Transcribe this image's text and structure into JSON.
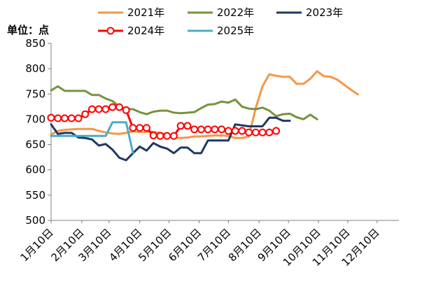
{
  "chart_data": {
    "type": "line",
    "ylabel": "单位：点",
    "ylim": [
      500,
      850
    ],
    "yticks": [
      500,
      550,
      600,
      650,
      700,
      750,
      800,
      850
    ],
    "xlim": [
      1,
      52
    ],
    "xticks": [
      {
        "label": "1月10日",
        "x": 1
      },
      {
        "label": "2月10日",
        "x": 5.5
      },
      {
        "label": "3月10日",
        "x": 9.5
      },
      {
        "label": "4月10日",
        "x": 14
      },
      {
        "label": "5月10日",
        "x": 18.3
      },
      {
        "label": "6月10日",
        "x": 22.7
      },
      {
        "label": "7月10日",
        "x": 27
      },
      {
        "label": "8月10日",
        "x": 31.5
      },
      {
        "label": "9月10日",
        "x": 35.8
      },
      {
        "label": "10月10日",
        "x": 40.2
      },
      {
        "label": "11月10日",
        "x": 44.5
      },
      {
        "label": "12月10日",
        "x": 48.8
      }
    ],
    "legend_position": "top",
    "series": [
      {
        "name": "2021年",
        "color": "#F79646",
        "marker": "none",
        "points": [
          [
            1,
            670
          ],
          [
            2,
            677
          ],
          [
            3,
            679
          ],
          [
            4,
            680
          ],
          [
            5,
            681
          ],
          [
            6,
            681
          ],
          [
            7,
            681
          ],
          [
            8,
            677
          ],
          [
            9,
            674
          ],
          [
            10,
            672
          ],
          [
            11,
            671
          ],
          [
            12,
            673
          ],
          [
            13,
            676
          ],
          [
            14,
            675
          ],
          [
            15,
            675
          ],
          [
            16,
            675
          ],
          [
            17,
            673
          ],
          [
            18,
            670
          ],
          [
            19,
            664
          ],
          [
            20,
            663
          ],
          [
            21,
            664
          ],
          [
            22,
            666
          ],
          [
            23,
            666
          ],
          [
            24,
            667
          ],
          [
            25,
            668
          ],
          [
            26,
            668
          ],
          [
            27,
            667
          ],
          [
            28,
            663
          ],
          [
            29,
            663
          ],
          [
            30,
            666
          ],
          [
            31,
            722
          ],
          [
            32,
            765
          ],
          [
            33,
            789
          ],
          [
            34,
            786
          ],
          [
            35,
            784
          ],
          [
            36,
            784
          ],
          [
            37,
            770
          ],
          [
            38,
            770
          ],
          [
            39,
            780
          ],
          [
            40,
            795
          ],
          [
            41,
            785
          ],
          [
            42,
            784
          ],
          [
            43,
            778
          ],
          [
            44,
            768
          ],
          [
            45,
            758
          ],
          [
            46,
            749
          ]
        ]
      },
      {
        "name": "2022年",
        "color": "#77933C",
        "marker": "none",
        "points": [
          [
            1,
            757
          ],
          [
            2,
            765
          ],
          [
            3,
            756
          ],
          [
            4,
            756
          ],
          [
            5,
            756
          ],
          [
            6,
            756
          ],
          [
            7,
            748
          ],
          [
            8,
            748
          ],
          [
            9,
            741
          ],
          [
            10,
            736
          ],
          [
            11,
            725
          ],
          [
            12,
            720
          ],
          [
            13,
            720
          ],
          [
            14,
            714
          ],
          [
            15,
            710
          ],
          [
            16,
            715
          ],
          [
            17,
            717
          ],
          [
            18,
            717
          ],
          [
            19,
            713
          ],
          [
            20,
            712
          ],
          [
            21,
            713
          ],
          [
            22,
            714
          ],
          [
            23,
            722
          ],
          [
            24,
            729
          ],
          [
            25,
            730
          ],
          [
            26,
            735
          ],
          [
            27,
            733
          ],
          [
            28,
            739
          ],
          [
            29,
            725
          ],
          [
            30,
            721
          ],
          [
            31,
            720
          ],
          [
            32,
            723
          ],
          [
            33,
            717
          ],
          [
            34,
            706
          ],
          [
            35,
            710
          ],
          [
            36,
            711
          ],
          [
            37,
            704
          ],
          [
            38,
            700
          ],
          [
            39,
            709
          ],
          [
            40,
            700
          ]
        ]
      },
      {
        "name": "2023年",
        "color": "#1F3864",
        "marker": "none",
        "points": [
          [
            1,
            690
          ],
          [
            2,
            671
          ],
          [
            3,
            673
          ],
          [
            4,
            673
          ],
          [
            5,
            664
          ],
          [
            6,
            663
          ],
          [
            7,
            660
          ],
          [
            8,
            648
          ],
          [
            9,
            651
          ],
          [
            10,
            640
          ],
          [
            11,
            624
          ],
          [
            12,
            619
          ],
          [
            13,
            633
          ],
          [
            14,
            646
          ],
          [
            15,
            638
          ],
          [
            16,
            653
          ],
          [
            17,
            646
          ],
          [
            18,
            642
          ],
          [
            19,
            633
          ],
          [
            20,
            644
          ],
          [
            21,
            644
          ],
          [
            22,
            633
          ],
          [
            23,
            633
          ],
          [
            24,
            658
          ],
          [
            25,
            658
          ],
          [
            26,
            658
          ],
          [
            27,
            658
          ],
          [
            28,
            690
          ],
          [
            29,
            688
          ],
          [
            30,
            686
          ],
          [
            31,
            686
          ],
          [
            32,
            686
          ],
          [
            33,
            703
          ],
          [
            34,
            703
          ],
          [
            35,
            697
          ],
          [
            36,
            697
          ]
        ]
      },
      {
        "name": "2024年",
        "color": "#FF0000",
        "marker": "circle",
        "points": [
          [
            1,
            703
          ],
          [
            2,
            702
          ],
          [
            3,
            702
          ],
          [
            4,
            702
          ],
          [
            5,
            702
          ],
          [
            6,
            710
          ],
          [
            7,
            720
          ],
          [
            8,
            720
          ],
          [
            9,
            720
          ],
          [
            10,
            724
          ],
          [
            11,
            724
          ],
          [
            12,
            718
          ],
          [
            13,
            683
          ],
          [
            14,
            683
          ],
          [
            15,
            683
          ],
          [
            16,
            668
          ],
          [
            17,
            667
          ],
          [
            18,
            667
          ],
          [
            19,
            667
          ],
          [
            20,
            687
          ],
          [
            21,
            687
          ],
          [
            22,
            680
          ],
          [
            23,
            680
          ],
          [
            24,
            680
          ],
          [
            25,
            680
          ],
          [
            26,
            680
          ],
          [
            27,
            677
          ],
          [
            28,
            677
          ],
          [
            29,
            677
          ],
          [
            30,
            674
          ],
          [
            31,
            674
          ],
          [
            32,
            674
          ],
          [
            33,
            674
          ],
          [
            34,
            677
          ]
        ]
      },
      {
        "name": "2025年",
        "color": "#4BACC6",
        "marker": "none",
        "points": [
          [
            1,
            667
          ],
          [
            2,
            667
          ],
          [
            3,
            667
          ],
          [
            4,
            667
          ],
          [
            5,
            667
          ],
          [
            6,
            667
          ],
          [
            7,
            667
          ],
          [
            8,
            667
          ],
          [
            9,
            667
          ],
          [
            10,
            694
          ],
          [
            11,
            694
          ],
          [
            12,
            694
          ],
          [
            13,
            634
          ]
        ]
      }
    ]
  }
}
